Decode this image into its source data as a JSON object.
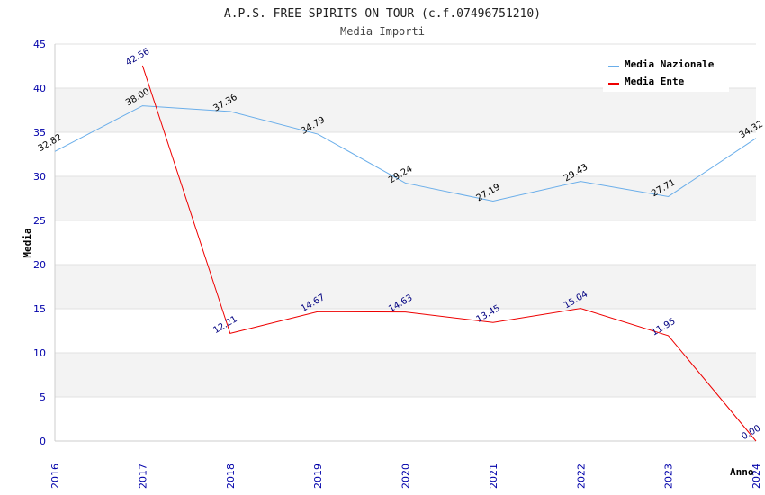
{
  "chart_data": {
    "type": "line",
    "title": "A.P.S. FREE SPIRITS ON TOUR (c.f.07496751210)",
    "subtitle": "Media Importi",
    "xlabel": "Anno",
    "ylabel": "Media",
    "ylim": [
      0,
      45
    ],
    "yticks": [
      0,
      5,
      10,
      15,
      20,
      25,
      30,
      35,
      40,
      45
    ],
    "categories": [
      "2016",
      "2017",
      "2018",
      "2019",
      "2020",
      "2021",
      "2022",
      "2023",
      "2024"
    ],
    "grid": "horizontal bands",
    "legend_position": "top-right",
    "series": [
      {
        "name": "Media Nazionale",
        "color": "#6aaeea",
        "labels": [
          "32.82",
          "38.00",
          "37.36",
          "34.79",
          "29.24",
          "27.19",
          "29.43",
          "27.71",
          "34.32"
        ],
        "values": [
          32.82,
          38.0,
          37.36,
          34.79,
          29.24,
          27.19,
          29.43,
          27.71,
          34.32
        ]
      },
      {
        "name": "Media Ente",
        "color": "#ee0000",
        "labels": [
          null,
          "42.56",
          "12.21",
          "14.67",
          "14.63",
          "13.45",
          "15.04",
          "11.95",
          "0.00"
        ],
        "values": [
          null,
          42.56,
          12.21,
          14.67,
          14.63,
          13.45,
          15.04,
          11.95,
          0.0
        ]
      }
    ]
  }
}
